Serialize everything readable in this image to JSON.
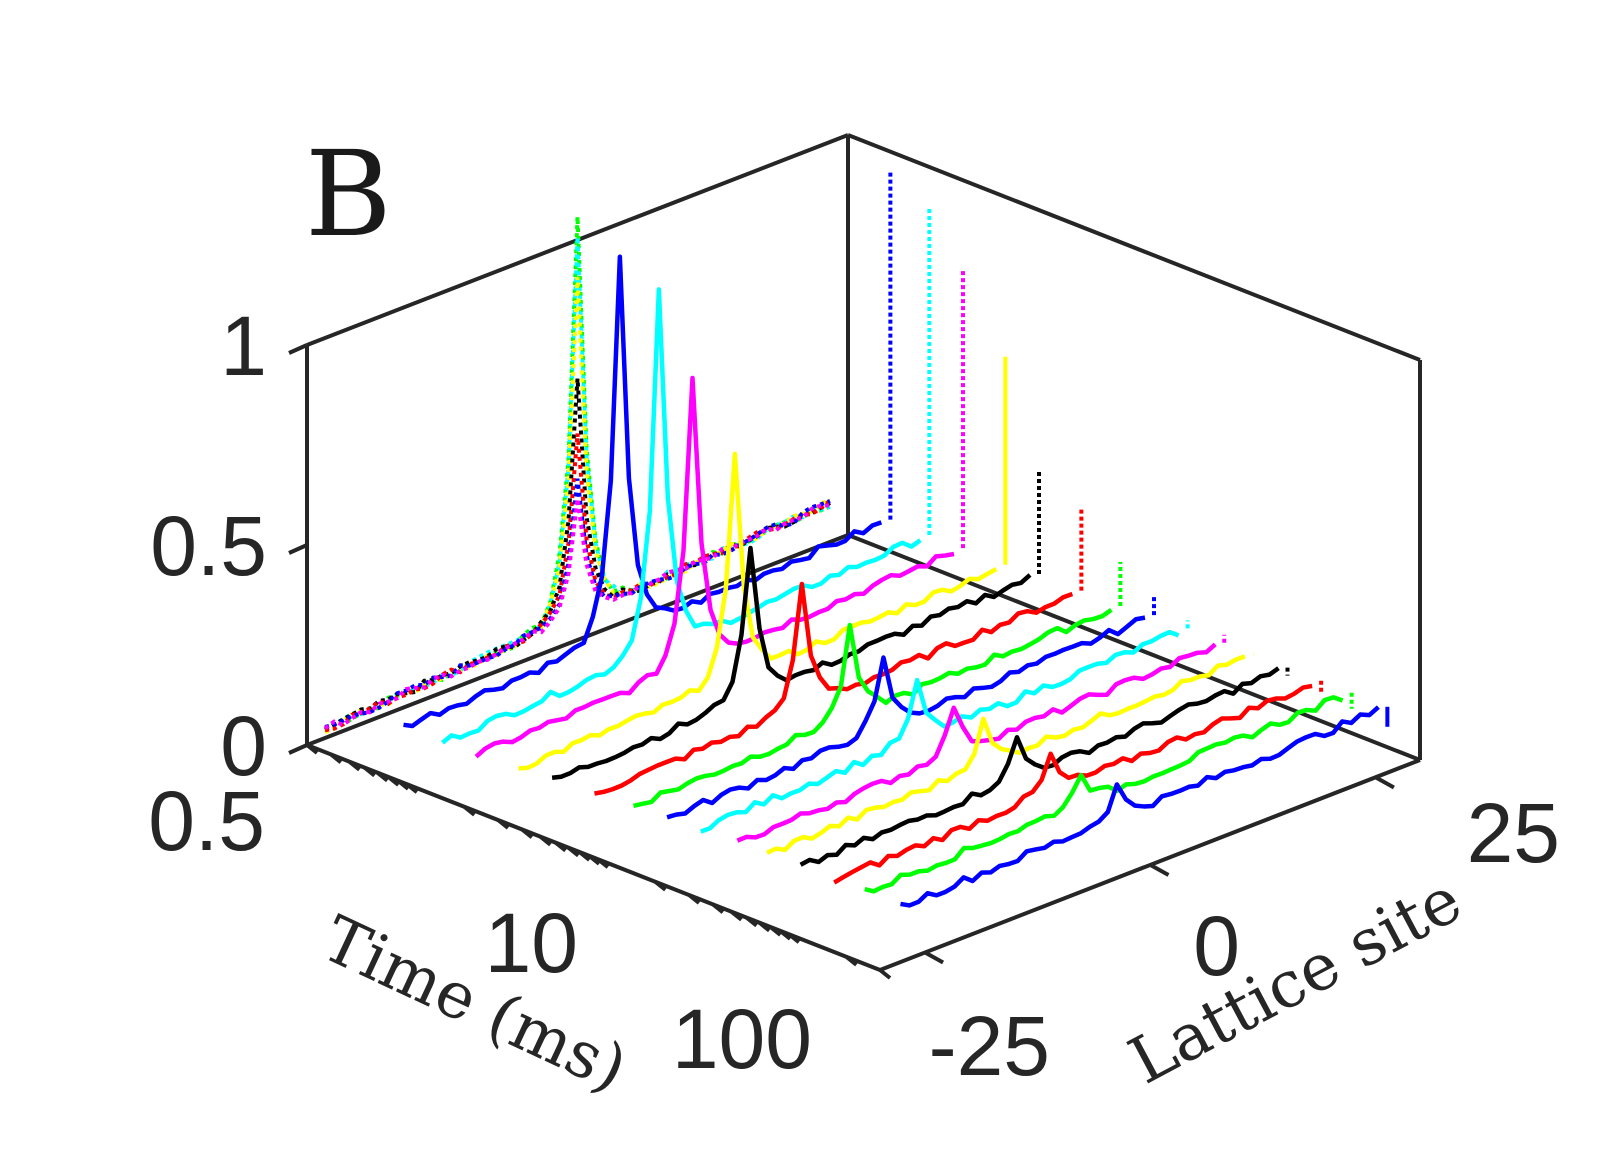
{
  "panel_label": "B",
  "chart_data": {
    "type": "line3d-waterfall",
    "panel": "B",
    "xlabel": "Time (ms)",
    "ylabel": "Lattice site",
    "zlabel": "",
    "time_ticks": [
      "0.5",
      "10",
      "100"
    ],
    "time_tick_values": [
      0.5,
      10,
      100
    ],
    "time_scale": "log",
    "time_range_ms": [
      0.3,
      300
    ],
    "site_ticks": [
      "-25",
      "0",
      "25"
    ],
    "site_tick_values": [
      -25,
      0,
      25
    ],
    "site_range": [
      -30,
      30
    ],
    "z_ticks": [
      "0",
      "0.5",
      "1"
    ],
    "z_tick_values": [
      0,
      0.5,
      1
    ],
    "z_range": [
      0,
      1
    ],
    "color_cycle": [
      "#0000ff",
      "#00ffff",
      "#ff00ff",
      "#ffff00",
      "#000000",
      "#ff0000",
      "#00ff00"
    ],
    "experiment_series": [
      {
        "time_ms": 0.5,
        "color": "#0000ff",
        "peak_site": 0,
        "peak": 0.95,
        "base": 0.03,
        "tail": 0.08
      },
      {
        "time_ms": 0.8,
        "color": "#00ffff",
        "peak_site": 0,
        "peak": 0.9,
        "base": 0.03,
        "tail": 0.08
      },
      {
        "time_ms": 1.2,
        "color": "#ff00ff",
        "peak_site": 0,
        "peak": 0.72,
        "base": 0.03,
        "tail": 0.08
      },
      {
        "time_ms": 2,
        "color": "#ffff00",
        "peak_site": 0,
        "peak": 0.55,
        "base": 0.04,
        "tail": 0.08
      },
      {
        "time_ms": 3,
        "color": "#000000",
        "peak_site": -2,
        "peak": 0.38,
        "base": 0.04,
        "tail": 0.09
      },
      {
        "time_ms": 5,
        "color": "#ff0000",
        "peak_site": -1,
        "peak": 0.3,
        "base": 0.05,
        "tail": 0.09
      },
      {
        "time_ms": 8,
        "color": "#00ff00",
        "peak_site": 0,
        "peak": 0.22,
        "base": 0.06,
        "tail": 0.09
      },
      {
        "time_ms": 12,
        "color": "#0000ff",
        "peak_site": 0,
        "peak": 0.17,
        "base": 0.06,
        "tail": 0.1
      },
      {
        "time_ms": 18,
        "color": "#00ffff",
        "peak_site": 0,
        "peak": 0.14,
        "base": 0.07,
        "tail": 0.1
      },
      {
        "time_ms": 28,
        "color": "#ff00ff",
        "peak_site": 0,
        "peak": 0.12,
        "base": 0.07,
        "tail": 0.1
      },
      {
        "time_ms": 40,
        "color": "#ffff00",
        "peak_site": 0,
        "peak": 0.11,
        "base": 0.07,
        "tail": 0.1
      },
      {
        "time_ms": 60,
        "color": "#000000",
        "peak_site": 0,
        "peak": 0.1,
        "base": 0.07,
        "tail": 0.1
      },
      {
        "time_ms": 90,
        "color": "#ff0000",
        "peak_site": 0,
        "peak": 0.09,
        "base": 0.07,
        "tail": 0.1
      },
      {
        "time_ms": 130,
        "color": "#00ff00",
        "peak_site": 0,
        "peak": 0.08,
        "base": 0.07,
        "tail": 0.1
      },
      {
        "time_ms": 200,
        "color": "#0000ff",
        "peak_site": 0,
        "peak": 0.08,
        "base": 0.07,
        "tail": 0.1
      }
    ],
    "back_wall_dotted_profiles": {
      "description": "Dotted projections of profiles onto the time-min wall",
      "peak_values": [
        1.0,
        0.95,
        0.85,
        0.6,
        0.45,
        0.35,
        0.3
      ],
      "colors": [
        "#00ff00",
        "#00ffff",
        "#ffff00",
        "#000000",
        "#ff0000",
        "#0000ff",
        "#ff00ff"
      ],
      "base": 0.02,
      "tail": 0.1
    },
    "side_wall_dotted_heights": {
      "description": "Dotted vertical markers on the site-max wall (edge population per time)",
      "style": "dotted for first three, solid otherwise",
      "values": [
        0.95,
        0.9,
        0.78,
        0.6,
        0.35,
        0.3,
        0.2,
        0.15,
        0.12,
        0.12,
        0.1,
        0.08,
        0.07,
        0.06,
        0.05
      ]
    }
  }
}
